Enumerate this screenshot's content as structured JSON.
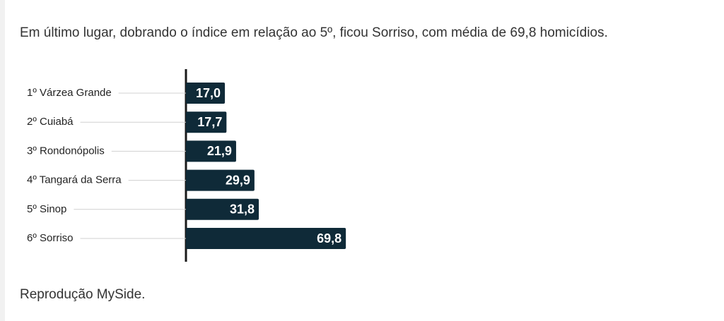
{
  "article": {
    "paragraph": "Em último lugar, dobrando o índice em relação ao 5º, ficou Sorriso, com média de 69,8 homicídios.",
    "caption": "Reprodução MySide."
  },
  "chart_data": {
    "type": "bar",
    "orientation": "horizontal",
    "color": "#0f2a38",
    "categories": [
      "1º Várzea Grande",
      "2º Cuiabá",
      "3º Rondonópolis",
      "4º Tangará da Serra",
      "5º Sinop",
      "6º Sorriso"
    ],
    "values": [
      17.0,
      17.7,
      21.9,
      29.9,
      31.8,
      69.8
    ],
    "value_labels": [
      "17,0",
      "17,7",
      "21,9",
      "29,9",
      "31,8",
      "69,8"
    ]
  }
}
